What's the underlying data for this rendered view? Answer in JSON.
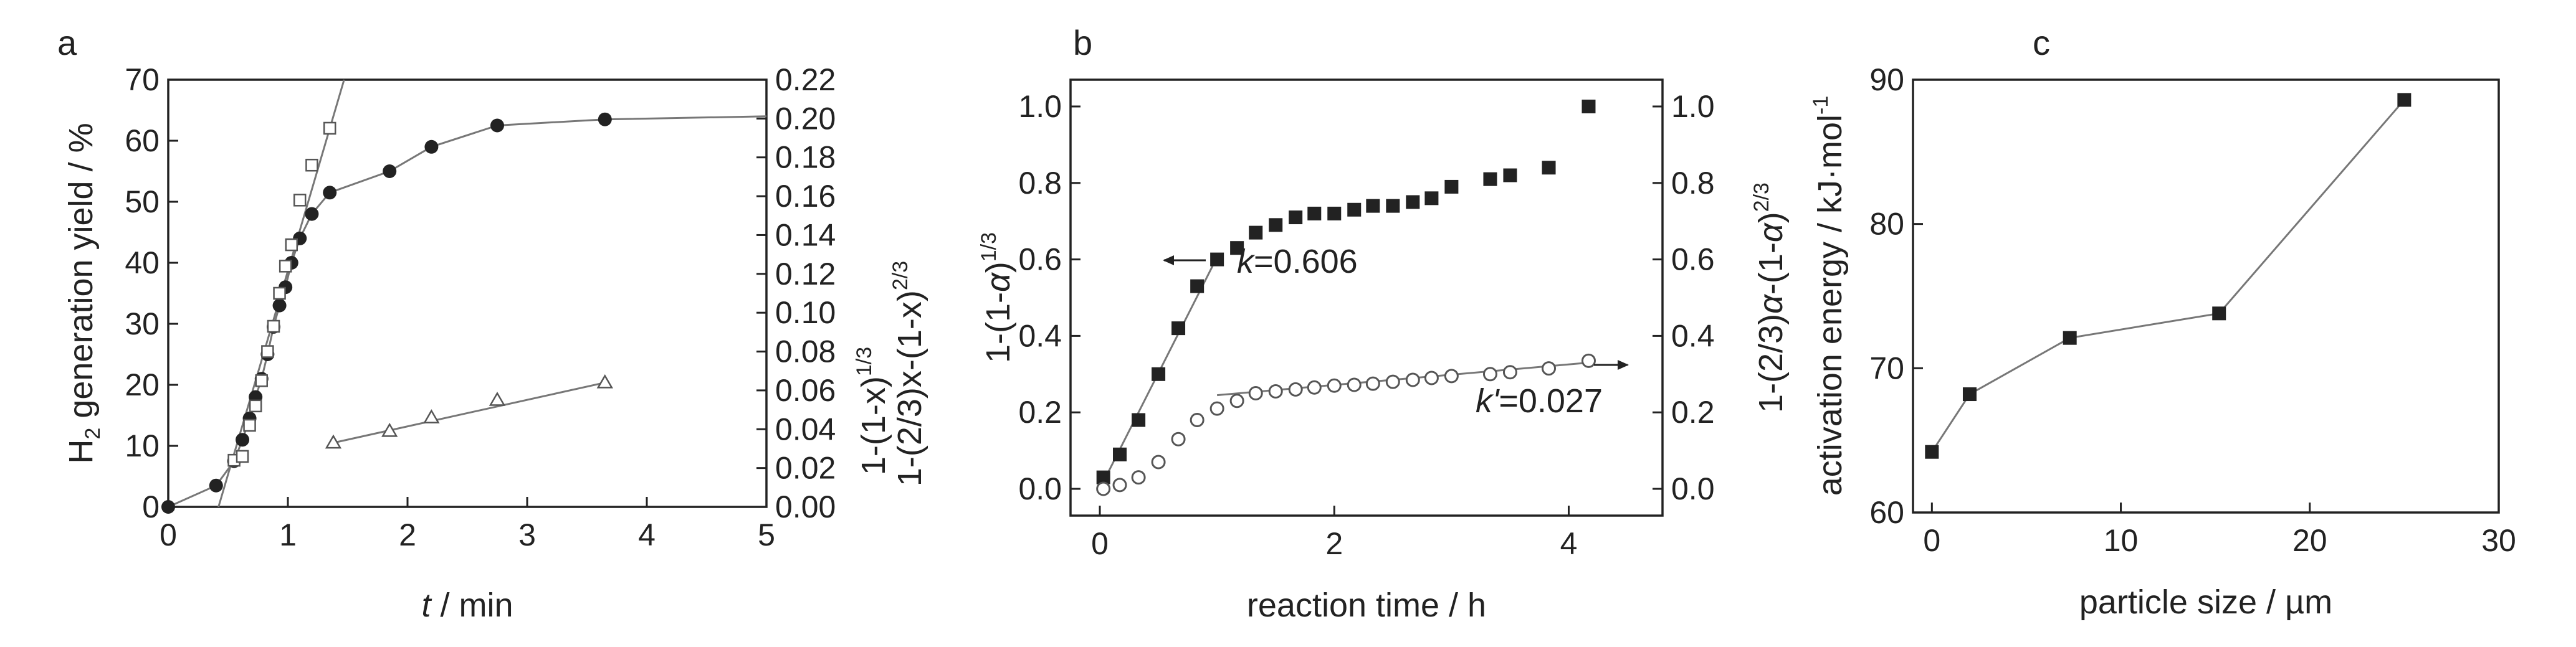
{
  "chart_data": [
    {
      "panel": "a",
      "type": "scatter",
      "xlabel_italic": "t",
      "xlabel_rest": " / min",
      "ylabel_left_pre": "H",
      "ylabel_left_sub": "2",
      "ylabel_left_post": " generation yield / %",
      "ylabel_right_1": "1-(1-x)",
      "ylabel_right_1_sup": "1/3",
      "ylabel_right_2": "1-(2/3)x-(1-x)",
      "ylabel_right_2_sup": "2/3",
      "xlim": [
        0,
        5
      ],
      "ylim_left": [
        0,
        70
      ],
      "ylim_right": [
        0,
        0.22
      ],
      "xticks": [
        "0",
        "1",
        "2",
        "3",
        "4",
        "5"
      ],
      "yticks_left": [
        "0",
        "10",
        "20",
        "30",
        "40",
        "50",
        "60",
        "70"
      ],
      "yticks_right": [
        "0.00",
        "0.02",
        "0.04",
        "0.06",
        "0.08",
        "0.10",
        "0.12",
        "0.14",
        "0.16",
        "0.18",
        "0.20",
        "0.22"
      ],
      "series": [
        {
          "marker": "filled-circle",
          "axis": "left",
          "connected": true,
          "x": [
            0,
            0.4,
            0.55,
            0.62,
            0.68,
            0.73,
            0.78,
            0.83,
            0.88,
            0.93,
            0.98,
            1.03,
            1.1,
            1.2,
            1.35,
            1.85,
            2.2,
            2.75,
            3.65,
            5.0
          ],
          "y": [
            0,
            3.5,
            7.5,
            11,
            14.5,
            18,
            21,
            25,
            29.5,
            33,
            36,
            40,
            44,
            48,
            51.5,
            55,
            59,
            62.5,
            63.5,
            64
          ]
        },
        {
          "marker": "open-square",
          "axis": "right",
          "connected": false,
          "x": [
            0.55,
            0.62,
            0.68,
            0.73,
            0.78,
            0.83,
            0.88,
            0.93,
            0.98,
            1.03,
            1.1,
            1.2,
            1.35
          ],
          "y": [
            0.024,
            0.026,
            0.042,
            0.052,
            0.065,
            0.08,
            0.093,
            0.11,
            0.124,
            0.135,
            0.158,
            0.176,
            0.195
          ]
        },
        {
          "marker": "open-triangle",
          "axis": "right",
          "connected": false,
          "x": [
            1.38,
            1.85,
            2.2,
            2.75,
            3.65
          ],
          "y": [
            0.033,
            0.039,
            0.046,
            0.055,
            0.064
          ]
        }
      ],
      "fit_lines": [
        {
          "axis": "right",
          "x": [
            0.42,
            1.47
          ],
          "y": [
            0.0,
            0.22
          ]
        },
        {
          "axis": "right",
          "x": [
            1.38,
            3.65
          ],
          "y": [
            0.033,
            0.064
          ]
        }
      ]
    },
    {
      "panel": "b",
      "type": "scatter",
      "xlabel": "reaction time / h",
      "ylabel_left_pre": "1-(1-",
      "ylabel_left_italic": "α",
      "ylabel_left_post": ")",
      "ylabel_left_sup": "1/3",
      "ylabel_right_pre": "1-(2/3)",
      "ylabel_right_it1": "α",
      "ylabel_right_mid": "-(1-",
      "ylabel_right_it2": "α",
      "ylabel_right_post": ")",
      "ylabel_right_sup": "2/3",
      "xlim": [
        -0.25,
        4.8
      ],
      "ylim_left": [
        -0.07,
        1.07
      ],
      "ylim_right": [
        -0.07,
        1.07
      ],
      "xticks": [
        "0",
        "2",
        "4"
      ],
      "yticks_left": [
        "0.0",
        "0.2",
        "0.4",
        "0.6",
        "0.8",
        "1.0"
      ],
      "yticks_right": [
        "0.0",
        "0.2",
        "0.4",
        "0.6",
        "0.8",
        "1.0"
      ],
      "series": [
        {
          "marker": "filled-square",
          "axis": "left",
          "x": [
            0.03,
            0.17,
            0.33,
            0.5,
            0.67,
            0.83,
            1.0,
            1.17,
            1.33,
            1.5,
            1.67,
            1.83,
            2.0,
            2.17,
            2.33,
            2.5,
            2.67,
            2.83,
            3.0,
            3.33,
            3.5,
            3.83,
            4.17
          ],
          "y": [
            0.03,
            0.09,
            0.18,
            0.3,
            0.42,
            0.53,
            0.6,
            0.63,
            0.67,
            0.69,
            0.71,
            0.72,
            0.72,
            0.73,
            0.74,
            0.74,
            0.75,
            0.76,
            0.79,
            0.81,
            0.82,
            0.84,
            1.0
          ]
        },
        {
          "marker": "open-circle",
          "axis": "right",
          "x": [
            0.03,
            0.17,
            0.33,
            0.5,
            0.67,
            0.83,
            1.0,
            1.17,
            1.33,
            1.5,
            1.67,
            1.83,
            2.0,
            2.17,
            2.33,
            2.5,
            2.67,
            2.83,
            3.0,
            3.33,
            3.5,
            3.83,
            4.17
          ],
          "y": [
            0.0,
            0.01,
            0.03,
            0.07,
            0.13,
            0.18,
            0.21,
            0.23,
            0.25,
            0.255,
            0.26,
            0.265,
            0.27,
            0.272,
            0.275,
            0.28,
            0.285,
            0.29,
            0.295,
            0.3,
            0.305,
            0.315,
            0.335
          ]
        }
      ],
      "fit_lines": [
        {
          "axis": "left",
          "x": [
            0.0,
            1.0
          ],
          "y": [
            0.0,
            0.606
          ]
        },
        {
          "axis": "right",
          "x": [
            1.0,
            4.17
          ],
          "y": [
            0.245,
            0.33
          ]
        }
      ],
      "annotations": [
        {
          "italic": "k",
          "text": "=0.606"
        },
        {
          "italic": "k'",
          "text": "=0.027"
        }
      ]
    },
    {
      "panel": "c",
      "type": "line",
      "xlabel_pre": "particle size / ",
      "xlabel_mu": "µ",
      "xlabel_post": "m",
      "ylabel": "activation energy / kJ·mol",
      "ylabel_sup": "-1",
      "xlim": [
        -1,
        30
      ],
      "ylim": [
        60,
        90
      ],
      "xticks": [
        "0",
        "10",
        "20",
        "30"
      ],
      "yticks": [
        "60",
        "70",
        "80",
        "90"
      ],
      "series": [
        {
          "marker": "filled-square",
          "x": [
            0,
            2,
            7.3,
            15.2,
            25
          ],
          "y": [
            64.2,
            68.2,
            72.1,
            73.8,
            88.6
          ]
        }
      ]
    }
  ]
}
